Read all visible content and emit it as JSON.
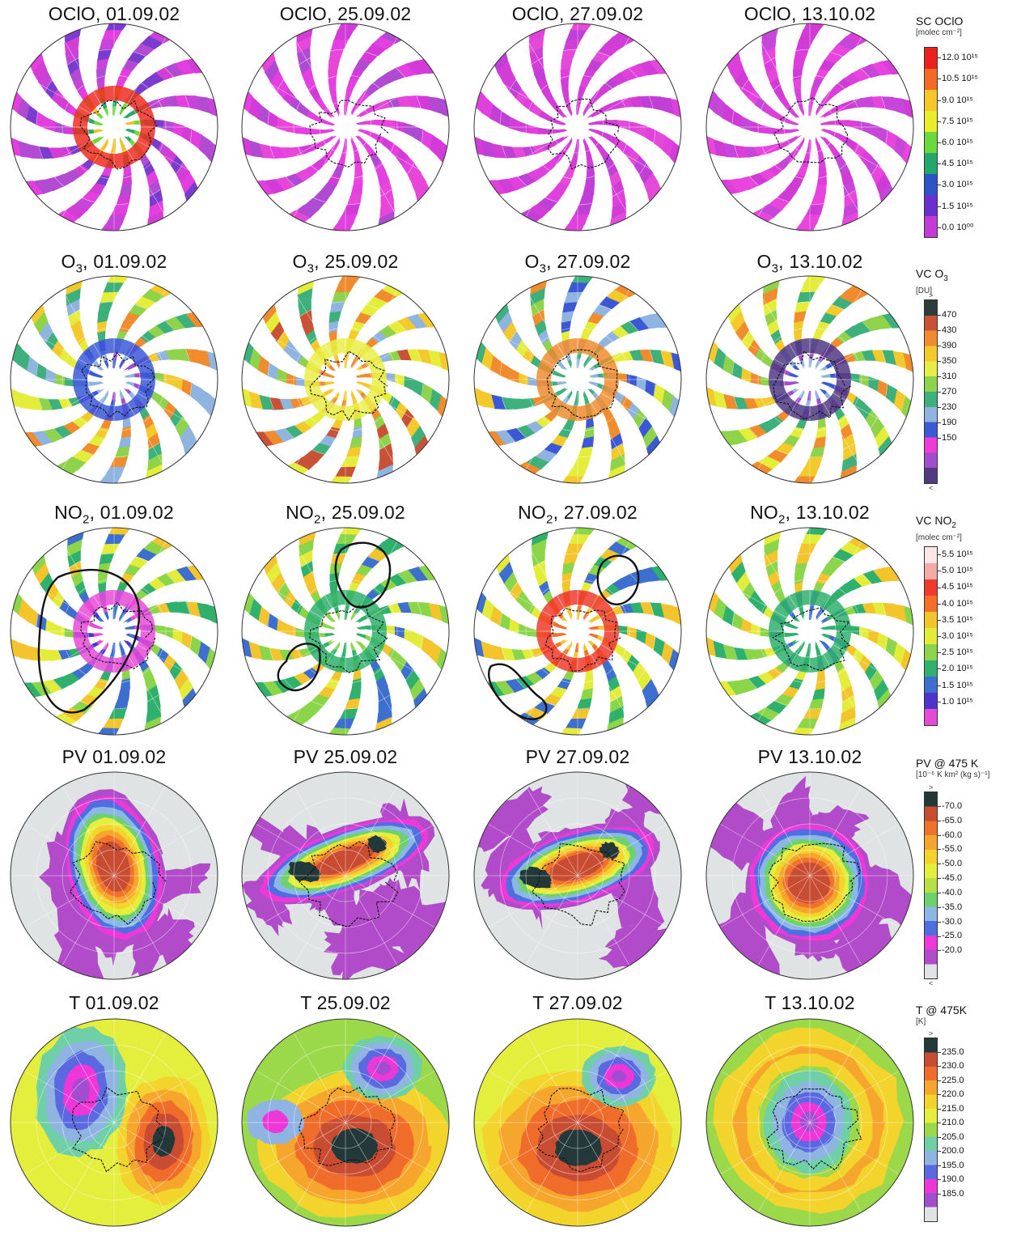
{
  "rows": [
    {
      "id": "oclo",
      "kind": "swath",
      "titles": [
        {
          "main": "OClO, 01.09.02"
        },
        {
          "main": "OClO, 25.09.02"
        },
        {
          "main": "OClO, 27.09.02"
        },
        {
          "main": "OClO, 13.10.02"
        }
      ],
      "legend": {
        "title": "SC OClO",
        "unit": "[molec cm⁻²]",
        "labels": [
          "12.0 10¹⁵",
          "10.5 10¹⁵",
          "9.0 10¹⁵",
          "7.5 10¹⁵",
          "6.0 10¹⁵",
          "4.5 10¹⁵",
          "3.0 10¹⁵",
          "1.5 10¹⁵",
          "0.0 10⁰⁰"
        ],
        "colors": [
          "#ee1f1f",
          "#f46a22",
          "#f7c72a",
          "#e9ee2a",
          "#6ad93a",
          "#23a86c",
          "#2c53c8",
          "#6a2fd0",
          "#c43ad7"
        ],
        "edge_top": "",
        "edge_bottom": ""
      }
    },
    {
      "id": "o3",
      "kind": "swath",
      "titles": [
        {
          "pre": "O",
          "sub": "3",
          "post": ", 01.09.02"
        },
        {
          "pre": "O",
          "sub": "3",
          "post": ", 25.09.02"
        },
        {
          "pre": "O",
          "sub": "3",
          "post": ", 27.09.02"
        },
        {
          "pre": "O",
          "sub": "3",
          "post": ", 13.10.02"
        }
      ],
      "legend": {
        "title_pre": "VC O",
        "title_sub": "3",
        "title_post": "",
        "unit": "[DU]",
        "labels": [
          "470",
          "430",
          "390",
          "350",
          "310",
          "270",
          "230",
          "190",
          "150"
        ],
        "colors": [
          "#2d3b3b",
          "#c85236",
          "#f08c2e",
          "#f3c92c",
          "#e9ee46",
          "#8fd24b",
          "#3db07b",
          "#8fb4e0",
          "#3b58d6",
          "#ef3ad7",
          "#a24ccf",
          "#513a82"
        ],
        "edge_top": ">",
        "edge_bottom": "<"
      }
    },
    {
      "id": "no2",
      "kind": "swath",
      "titles": [
        {
          "pre": "NO",
          "sub": "2",
          "post": ", 01.09.02"
        },
        {
          "pre": "NO",
          "sub": "2",
          "post": ", 25.09.02"
        },
        {
          "pre": "NO",
          "sub": "2",
          "post": ", 27.09.02"
        },
        {
          "pre": "NO",
          "sub": "2",
          "post": ", 13.10.02"
        }
      ],
      "legend": {
        "title_pre": "VC NO",
        "title_sub": "2",
        "title_post": "",
        "unit": "[molec cm⁻²]",
        "labels": [
          "5.5 10¹⁵",
          "5.0 10¹⁵",
          "4.5 10¹⁵",
          "4.0 10¹⁵",
          "3.5 10¹⁵",
          "3.0 10¹⁵",
          "2.5 10¹⁵",
          "2.0 10¹⁵",
          "1.5 10¹⁵",
          "1.0 10¹⁵"
        ],
        "colors": [
          "#fbe7e7",
          "#f4aaa6",
          "#ee3b2d",
          "#f46f2a",
          "#f4c42c",
          "#e4ec3a",
          "#8bd54b",
          "#2fb06c",
          "#3c6fcf",
          "#4d34cc",
          "#e64bd6"
        ],
        "edge_top": "",
        "edge_bottom": ""
      }
    },
    {
      "id": "pv",
      "kind": "contour",
      "titles": [
        {
          "main": "PV 01.09.02"
        },
        {
          "main": "PV 25.09.02"
        },
        {
          "main": "PV 27.09.02"
        },
        {
          "main": "PV 13.10.02"
        }
      ],
      "legend": {
        "title": "PV @ 475 K",
        "unit": "[10⁻⁶ K km² (kg s)⁻¹]",
        "labels": [
          "-70.0",
          "-65.0",
          "-60.0",
          "-55.0",
          "-50.0",
          "-45.0",
          "-40.0",
          "-35.0",
          "-30.0",
          "-25.0",
          "-20.0"
        ],
        "colors": [
          "#233838",
          "#c84c32",
          "#f0722b",
          "#f6a52c",
          "#f4d42c",
          "#e4ee3c",
          "#b7e043",
          "#6fd070",
          "#8ab7e6",
          "#4f6fe0",
          "#ef38d8",
          "#b24bc9",
          "#dfe3e4"
        ],
        "edge_top": ">",
        "edge_bottom": "<"
      }
    },
    {
      "id": "t",
      "kind": "contour",
      "titles": [
        {
          "main": "T 01.09.02"
        },
        {
          "main": "T 25.09.02"
        },
        {
          "main": "T 27.09.02"
        },
        {
          "main": "T 13.10.02"
        }
      ],
      "legend": {
        "title": "T @ 475K",
        "unit": "[K]",
        "labels": [
          "235.0",
          "230.0",
          "225.0",
          "220.0",
          "215.0",
          "210.0",
          "205.0",
          "200.0",
          "195.0",
          "190.0",
          "185.0"
        ],
        "colors": [
          "#233838",
          "#c84c32",
          "#ef6c2a",
          "#f6a62c",
          "#f3d42c",
          "#e4ee3c",
          "#9bd84a",
          "#6fcfa6",
          "#8fb4e2",
          "#5b69e0",
          "#ef36d6",
          "#a24ccf",
          "#dfe3e4"
        ],
        "edge_top": ">",
        "edge_bottom": ""
      }
    }
  ]
}
